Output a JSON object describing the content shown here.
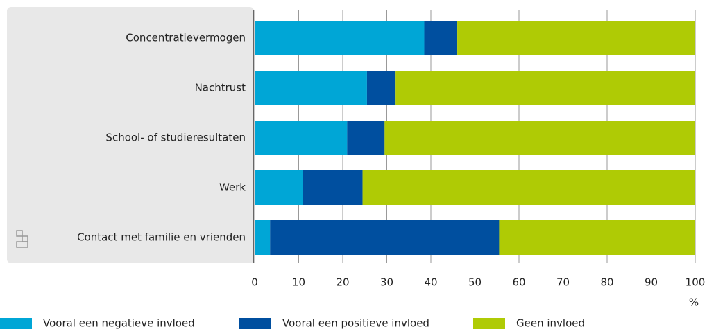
{
  "chart_data": {
    "type": "stacked-bar-horizontal",
    "categories": [
      "Concentratievermogen",
      "Nachtrust",
      "School- of studieresultaten",
      "Werk",
      "Contact met familie en vrienden"
    ],
    "series": [
      {
        "name": "Vooral een negatieve invloed",
        "color": "#00a6d6",
        "values": [
          38.5,
          25.5,
          21,
          11,
          3.5
        ]
      },
      {
        "name": "Vooral een positieve invloed",
        "color": "#004f9f",
        "values": [
          7.5,
          6.5,
          8.5,
          13.5,
          52
        ]
      },
      {
        "name": "Geen invloed",
        "color": "#afcb05",
        "values": [
          54,
          68,
          70.5,
          75.5,
          44.5
        ]
      }
    ],
    "xlabel": "%",
    "xlim": [
      0,
      100
    ],
    "xticks": [
      0,
      10,
      20,
      30,
      40,
      50,
      60,
      70,
      80,
      90,
      100
    ],
    "grid": true
  }
}
